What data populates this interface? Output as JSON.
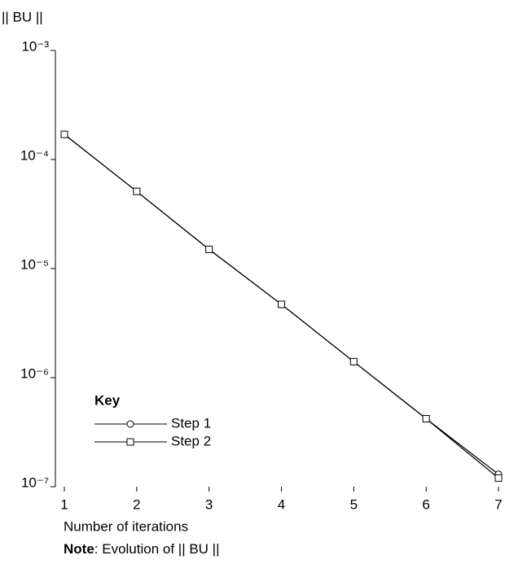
{
  "chart_data": {
    "type": "line",
    "y_label": "|| BU ||",
    "x_label": "Number of iterations",
    "note_label": "Note",
    "note_text": ": Evolution of || BU ||",
    "legend_title": "Key",
    "x": [
      1,
      2,
      3,
      4,
      5,
      6,
      7
    ],
    "xlim": [
      1,
      7
    ],
    "xticks": [
      1,
      2,
      3,
      4,
      5,
      6,
      7
    ],
    "y_log": true,
    "ylim": [
      1e-07,
      0.001
    ],
    "yticks": [
      {
        "value": 1e-07,
        "label": "10⁻⁷"
      },
      {
        "value": 1e-06,
        "label": "10⁻⁶"
      },
      {
        "value": 1e-05,
        "label": "10⁻⁵"
      },
      {
        "value": 0.0001,
        "label": "10⁻⁴"
      },
      {
        "value": 0.001,
        "label": "10⁻³"
      }
    ],
    "series": [
      {
        "name": "Step 1",
        "color": "#000000",
        "marker": "circle",
        "values": [
          0.00017,
          5.1e-05,
          1.5e-05,
          4.7e-06,
          1.4e-06,
          4.2e-07,
          1.3e-07
        ]
      },
      {
        "name": "Step 2",
        "color": "#000000",
        "marker": "square",
        "values": [
          0.00017,
          5.1e-05,
          1.5e-05,
          4.7e-06,
          1.4e-06,
          4.2e-07,
          1.2e-07
        ]
      }
    ]
  }
}
